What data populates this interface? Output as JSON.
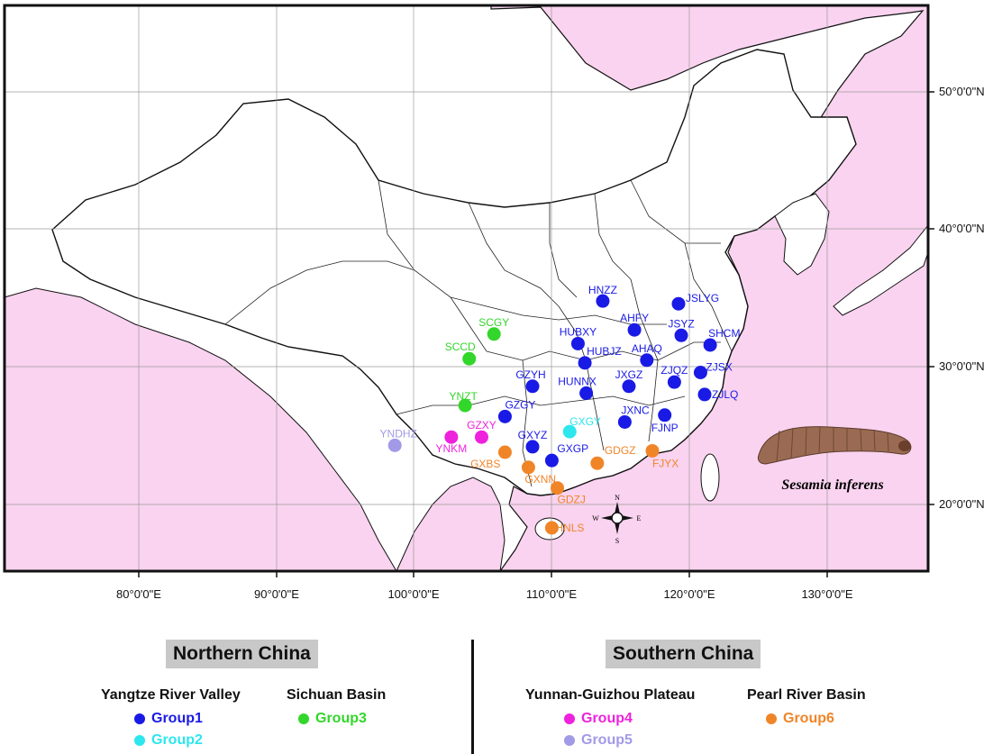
{
  "colors": {
    "sea": "#f9d3ef",
    "land": "#ffffff",
    "group1": "#1a1ae6",
    "group2": "#2de6ee",
    "group3": "#33d62a",
    "group4": "#ee22dd",
    "group5": "#a29ae6",
    "group6": "#f08528"
  },
  "axes": {
    "x_ticks": [
      "80°0'0\"E",
      "90°0'0\"E",
      "100°0'0\"E",
      "110°0'0\"E",
      "120°0'0\"E",
      "130°0'0\"E"
    ],
    "y_ticks": [
      "50°0'0\"N",
      "40°0'0\"N",
      "30°0'0\"N",
      "20°0'0\"N"
    ]
  },
  "sites": [
    {
      "code": "HNZZ",
      "group": "group1",
      "lon": 113.7,
      "lat": 34.8
    },
    {
      "code": "JSLYG",
      "group": "group1",
      "lon": 119.2,
      "lat": 34.6
    },
    {
      "code": "AHFY",
      "group": "group1",
      "lon": 116.0,
      "lat": 32.7
    },
    {
      "code": "JSYZ",
      "group": "group1",
      "lon": 119.4,
      "lat": 32.3
    },
    {
      "code": "SHCM",
      "group": "group1",
      "lon": 121.5,
      "lat": 31.6
    },
    {
      "code": "HUBXY",
      "group": "group1",
      "lon": 111.9,
      "lat": 31.7
    },
    {
      "code": "HUBJZ",
      "group": "group1",
      "lon": 112.4,
      "lat": 30.3
    },
    {
      "code": "AHAQ",
      "group": "group1",
      "lon": 116.9,
      "lat": 30.5
    },
    {
      "code": "ZJSX",
      "group": "group1",
      "lon": 120.8,
      "lat": 29.6
    },
    {
      "code": "GZYH",
      "group": "group1",
      "lon": 108.6,
      "lat": 28.6
    },
    {
      "code": "HUNNX",
      "group": "group1",
      "lon": 112.5,
      "lat": 28.1
    },
    {
      "code": "JXGZ",
      "group": "group1",
      "lon": 115.6,
      "lat": 28.6
    },
    {
      "code": "ZJQZ",
      "group": "group1",
      "lon": 118.9,
      "lat": 28.9
    },
    {
      "code": "ZJLQ",
      "group": "group1",
      "lon": 121.1,
      "lat": 28.0
    },
    {
      "code": "GZGY",
      "group": "group1",
      "lon": 106.6,
      "lat": 26.4
    },
    {
      "code": "JXNC",
      "group": "group1",
      "lon": 115.3,
      "lat": 26.0
    },
    {
      "code": "FJNP",
      "group": "group1",
      "lon": 118.2,
      "lat": 26.5
    },
    {
      "code": "GXYZ",
      "group": "group1",
      "lon": 108.6,
      "lat": 24.2
    },
    {
      "code": "GXGP",
      "group": "group1",
      "lon": 110.0,
      "lat": 23.2
    },
    {
      "code": "GXGY",
      "group": "group2",
      "lon": 111.3,
      "lat": 25.3
    },
    {
      "code": "SCGY",
      "group": "group3",
      "lon": 105.8,
      "lat": 32.4
    },
    {
      "code": "SCCD",
      "group": "group3",
      "lon": 104.0,
      "lat": 30.6
    },
    {
      "code": "YNZT",
      "group": "group3",
      "lon": 103.7,
      "lat": 27.2
    },
    {
      "code": "GZXY",
      "group": "group4",
      "lon": 104.9,
      "lat": 24.9
    },
    {
      "code": "YNKM",
      "group": "group4",
      "lon": 102.7,
      "lat": 24.9
    },
    {
      "code": "YNDHZ",
      "group": "group5",
      "lon": 98.6,
      "lat": 24.3
    },
    {
      "code": "GXBS",
      "group": "group6",
      "lon": 106.6,
      "lat": 23.8
    },
    {
      "code": "GXNN",
      "group": "group6",
      "lon": 108.3,
      "lat": 22.7
    },
    {
      "code": "GDGZ",
      "group": "group6",
      "lon": 113.3,
      "lat": 23.0
    },
    {
      "code": "FJYX",
      "group": "group6",
      "lon": 117.3,
      "lat": 23.9
    },
    {
      "code": "GDZJ",
      "group": "group6",
      "lon": 110.4,
      "lat": 21.2
    },
    {
      "code": "HNLS",
      "group": "group6",
      "lon": 110.0,
      "lat": 18.3
    }
  ],
  "species_label": "Sesamia inferens",
  "compass": {
    "n": "N",
    "s": "S",
    "e": "E",
    "w": "W"
  },
  "legend": {
    "northern": {
      "title": "Northern China",
      "yangtze": {
        "title": "Yangtze River Valley",
        "group1": "Group1",
        "group2": "Group2"
      },
      "sichuan": {
        "title": "Sichuan Basin",
        "group3": "Group3"
      }
    },
    "southern": {
      "title": "Southern China",
      "yunnan": {
        "title": "Yunnan-Guizhou Plateau",
        "group4": "Group4",
        "group5": "Group5"
      },
      "pearl": {
        "title": "Pearl River Basin",
        "group6": "Group6"
      }
    }
  }
}
